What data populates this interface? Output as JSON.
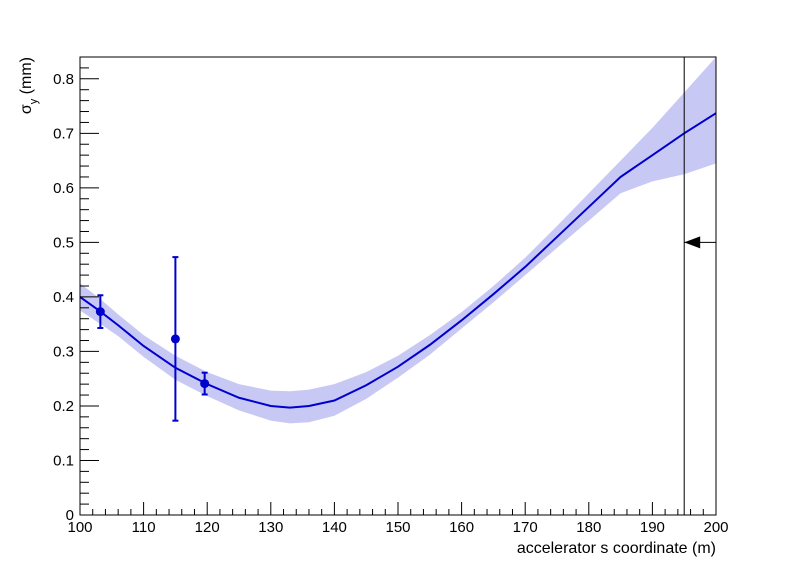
{
  "chart_data": {
    "type": "line",
    "title": "",
    "xlabel": "accelerator s coordinate (m)",
    "ylabel": {
      "symbol": "σ",
      "subscript": "y",
      "unit": " (mm)"
    },
    "xlim": [
      100,
      200
    ],
    "ylim": [
      0,
      0.84
    ],
    "x_ticks": [
      100,
      110,
      120,
      130,
      140,
      150,
      160,
      170,
      180,
      190,
      200
    ],
    "y_ticks": [
      0,
      0.1,
      0.2,
      0.3,
      0.4,
      0.5,
      0.6,
      0.7,
      0.8
    ],
    "grid": false,
    "fit_curve": {
      "color": "#0000cc",
      "x": [
        100,
        103,
        106,
        110,
        115,
        120,
        125,
        130,
        133,
        136,
        140,
        145,
        150,
        155,
        160,
        165,
        170,
        175,
        180,
        185,
        190,
        195,
        200
      ],
      "y": [
        0.4,
        0.375,
        0.348,
        0.31,
        0.27,
        0.24,
        0.215,
        0.2,
        0.197,
        0.2,
        0.21,
        0.238,
        0.272,
        0.312,
        0.357,
        0.405,
        0.455,
        0.51,
        0.565,
        0.62,
        0.66,
        0.7,
        0.737
      ]
    },
    "error_band": {
      "color": "#c8c8f5",
      "x": [
        100,
        103,
        106,
        110,
        115,
        120,
        125,
        130,
        133,
        136,
        140,
        145,
        150,
        155,
        160,
        165,
        170,
        175,
        180,
        185,
        190,
        195,
        200
      ],
      "upper": [
        0.425,
        0.398,
        0.368,
        0.33,
        0.292,
        0.262,
        0.24,
        0.228,
        0.227,
        0.23,
        0.24,
        0.262,
        0.292,
        0.33,
        0.372,
        0.42,
        0.472,
        0.53,
        0.59,
        0.65,
        0.71,
        0.775,
        0.84
      ],
      "lower": [
        0.375,
        0.352,
        0.328,
        0.29,
        0.248,
        0.218,
        0.192,
        0.173,
        0.168,
        0.17,
        0.182,
        0.213,
        0.252,
        0.294,
        0.342,
        0.39,
        0.44,
        0.49,
        0.54,
        0.59,
        0.612,
        0.625,
        0.645
      ]
    },
    "measurements": {
      "color": "#0000cc",
      "points": [
        {
          "x": 103.2,
          "y": 0.373,
          "err": 0.03
        },
        {
          "x": 115.0,
          "y": 0.323,
          "err": 0.15
        },
        {
          "x": 119.6,
          "y": 0.241,
          "err": 0.02
        }
      ]
    },
    "marker": {
      "vertical_line_x": 195,
      "arrow_y": 0.5,
      "arrow_from_x": 200,
      "color": "#000000"
    }
  }
}
